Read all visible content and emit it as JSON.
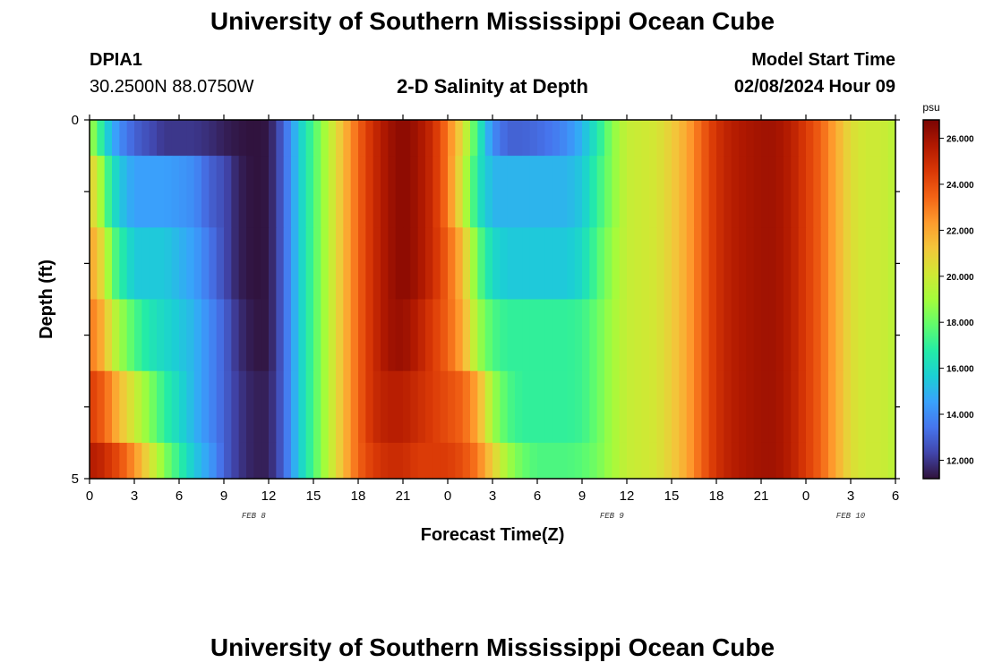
{
  "header": {
    "title": "University of Southern Mississippi Ocean Cube",
    "station": "DPIA1",
    "coordinates": "30.2500N  88.0750W",
    "subtitle": "2-D Salinity at Depth",
    "model_start_label": "Model Start Time",
    "model_start_value": "02/08/2024 Hour 09"
  },
  "footer": {
    "title": "University of Southern Mississippi Ocean Cube"
  },
  "chart_data": {
    "type": "heatmap",
    "title": "2-D Salinity at Depth",
    "xlabel": "Forecast Time(Z)",
    "ylabel": "Depth (ft)",
    "x_tick_labels": [
      "0",
      "3",
      "6",
      "9",
      "12",
      "15",
      "18",
      "21",
      "0",
      "3",
      "6",
      "9",
      "12",
      "15",
      "18",
      "21",
      "0",
      "3",
      "6"
    ],
    "date_labels": [
      {
        "text": "FEB 8",
        "hour": 11
      },
      {
        "text": "FEB 9",
        "hour": 35
      },
      {
        "text": "FEB 10",
        "hour": 51
      }
    ],
    "y_tick_labels": [
      "0",
      "5"
    ],
    "y_range": [
      0,
      5
    ],
    "x_range_hours": [
      0,
      54
    ],
    "colorbar": {
      "unit": "psu",
      "min": 11.2,
      "max": 26.8,
      "tick_labels": [
        "12.000",
        "14.000",
        "16.000",
        "18.000",
        "20.000",
        "22.000",
        "24.000",
        "26.000"
      ],
      "tick_values": [
        12,
        14,
        16,
        18,
        20,
        22,
        24,
        26
      ]
    },
    "time_knots_hours": [
      0,
      0.5,
      1,
      1.5,
      2,
      3,
      4,
      5,
      6,
      7,
      8,
      9,
      10,
      11,
      12,
      13,
      14,
      15,
      16,
      17,
      18,
      19,
      20,
      21,
      22,
      23,
      24,
      25,
      26,
      27,
      28,
      29,
      30,
      31,
      32,
      33,
      34,
      35,
      36,
      37,
      38,
      39,
      40,
      41,
      42,
      43,
      44,
      45,
      46,
      47,
      48,
      49,
      50,
      51,
      52,
      53,
      54
    ],
    "depth_layers": [
      {
        "depth": "0-0.5",
        "values": [
          19,
          18,
          16,
          15,
          14,
          13,
          12.5,
          12,
          12,
          12,
          11.8,
          11.5,
          11.3,
          11.2,
          11.3,
          13,
          15.5,
          17.5,
          19.5,
          21.5,
          23.5,
          25,
          26,
          26.5,
          26,
          25,
          23,
          20.5,
          17,
          14,
          13,
          13,
          13.2,
          13.5,
          14,
          15,
          16.5,
          18.5,
          19.8,
          20,
          20.2,
          21,
          22,
          23.5,
          24.8,
          25.5,
          25.8,
          26,
          26,
          25.5,
          24.5,
          23.5,
          22,
          20.5,
          20,
          20,
          19.5
        ]
      },
      {
        "depth": "0.5-1.5",
        "values": [
          21,
          20,
          18,
          16.5,
          15.5,
          14.5,
          14.5,
          14.5,
          14.3,
          14,
          13,
          12.5,
          11.5,
          11.2,
          11.3,
          13,
          15.5,
          17.5,
          19.5,
          21.5,
          23.5,
          25,
          26,
          26.5,
          26,
          25,
          23,
          20,
          16.5,
          15,
          15,
          15,
          15,
          15,
          15,
          15.5,
          17,
          18.5,
          19.8,
          20,
          20.2,
          21,
          22,
          23.5,
          24.8,
          25.5,
          25.8,
          26,
          26,
          25.5,
          24.5,
          23.5,
          22,
          20.5,
          20,
          20,
          19.5
        ]
      },
      {
        "depth": "1.5-2.5",
        "values": [
          22,
          21.5,
          20,
          18,
          17,
          15.5,
          15.5,
          15.5,
          15,
          14.5,
          13.5,
          12.5,
          11.5,
          11.2,
          11.3,
          13,
          15.5,
          17.5,
          19.5,
          21.5,
          23.5,
          25,
          26,
          26.5,
          26,
          25,
          23.5,
          21.5,
          18,
          16,
          15.5,
          15.5,
          15.5,
          15.5,
          15.5,
          16,
          17.5,
          18.8,
          19.8,
          20,
          20.2,
          21,
          22,
          23.5,
          24.8,
          25.5,
          25.8,
          26,
          26,
          25.5,
          24.5,
          23.5,
          22,
          20.5,
          20,
          20,
          19.5
        ]
      },
      {
        "depth": "2.5-3.5",
        "values": [
          23,
          22.5,
          21.5,
          20,
          19,
          17.5,
          16.5,
          16,
          15.5,
          15,
          14,
          13,
          11.8,
          11.3,
          11.3,
          13,
          15.5,
          17.5,
          19.5,
          21.5,
          23.5,
          25,
          26,
          26.2,
          25.5,
          24.5,
          23.5,
          22,
          19,
          17.5,
          17,
          17,
          17,
          17,
          17,
          17.2,
          18,
          19,
          19.8,
          20,
          20.2,
          21,
          22,
          23.5,
          24.8,
          25.5,
          25.8,
          26,
          26,
          25.5,
          24.5,
          23.5,
          22,
          20.5,
          20,
          20,
          19.5
        ]
      },
      {
        "depth": "3.5-4.5",
        "values": [
          24.5,
          24,
          23.5,
          22.5,
          21.5,
          20,
          18.5,
          17,
          16,
          15,
          14,
          13,
          12,
          11.5,
          11.5,
          13,
          15.5,
          17.5,
          19.5,
          21.5,
          23.5,
          25,
          25.5,
          25.5,
          25,
          24.5,
          24,
          23.5,
          22,
          19,
          17.5,
          17,
          17,
          17,
          17,
          17.2,
          18,
          19,
          19.8,
          20,
          20.2,
          21,
          22,
          23.5,
          24.8,
          25.5,
          25.8,
          26,
          26,
          25.5,
          24.5,
          23.5,
          22,
          20.5,
          20,
          20,
          19.5
        ]
      },
      {
        "depth": "4.5-5",
        "values": [
          25.5,
          25.5,
          25,
          24.5,
          24,
          22.5,
          20.5,
          18.5,
          17,
          15.5,
          14.5,
          13,
          12,
          11.5,
          11.5,
          13,
          15.5,
          17.5,
          19.5,
          21.5,
          23.5,
          24.5,
          25,
          25,
          24.5,
          24.5,
          24.5,
          24,
          23,
          21,
          19,
          18,
          17.5,
          17.5,
          17.5,
          17.7,
          18.2,
          19,
          19.8,
          20,
          20.2,
          21,
          22,
          23.5,
          24.8,
          25.5,
          25.8,
          26,
          26,
          25.5,
          24.5,
          23.5,
          22,
          20.5,
          20,
          20,
          19.5
        ]
      }
    ]
  },
  "colors": {
    "colormap_stops": [
      "#30123b",
      "#4145ab",
      "#4675ed",
      "#39a2fc",
      "#1bcfd4",
      "#24eca6",
      "#61fc6c",
      "#a4fc3b",
      "#d1e834",
      "#f3c63a",
      "#fe9b2d",
      "#f36315",
      "#d93806",
      "#b11901",
      "#7a0403"
    ]
  }
}
